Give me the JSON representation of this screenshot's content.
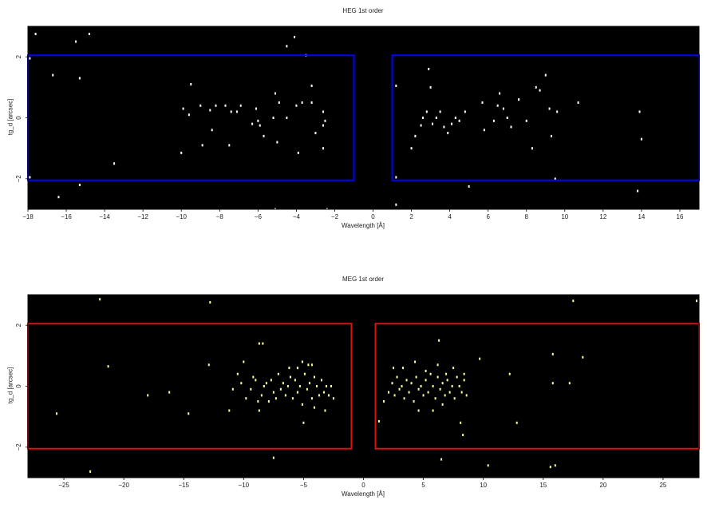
{
  "chart_data": [
    {
      "type": "scatter",
      "title": "HEG 1st order",
      "xlabel": "Wavelength [Å]",
      "ylabel": "tg_d [arcsec]",
      "xlim": [
        -18,
        17
      ],
      "ylim": [
        -3,
        3
      ],
      "xticks": [
        -18,
        -16,
        -14,
        -12,
        -10,
        -8,
        -6,
        -4,
        -2,
        0,
        2,
        4,
        6,
        8,
        10,
        12,
        14,
        16
      ],
      "yticks": [
        -2,
        0,
        2
      ],
      "grid": false,
      "background": "#000000",
      "point_color": "#ffffff",
      "region_color": "#0000ff",
      "regions": [
        {
          "x": [
            -18,
            -1
          ],
          "y": [
            -2.05,
            2.05
          ]
        },
        {
          "x": [
            1,
            17
          ],
          "y": [
            -2.05,
            2.05
          ]
        }
      ],
      "points": [
        [
          -17.6,
          2.75
        ],
        [
          -15.5,
          2.5
        ],
        [
          -14.8,
          2.75
        ],
        [
          -17.9,
          1.95
        ],
        [
          -16.7,
          1.4
        ],
        [
          -15.3,
          1.3
        ],
        [
          -13.5,
          -1.5
        ],
        [
          -15.3,
          -2.2
        ],
        [
          -16.4,
          -2.6
        ],
        [
          -17.9,
          -1.95
        ],
        [
          -9.5,
          1.1
        ],
        [
          -9.9,
          0.3
        ],
        [
          -9.6,
          0.1
        ],
        [
          -9.0,
          0.4
        ],
        [
          -8.5,
          0.25
        ],
        [
          -8.2,
          0.4
        ],
        [
          -7.7,
          0.4
        ],
        [
          -7.4,
          0.2
        ],
        [
          -7.1,
          0.2
        ],
        [
          -6.9,
          0.4
        ],
        [
          -6.1,
          0.3
        ],
        [
          -6.0,
          -0.1
        ],
        [
          -5.9,
          -0.25
        ],
        [
          -5.7,
          -0.6
        ],
        [
          -5.2,
          0.0
        ],
        [
          -5.1,
          0.8
        ],
        [
          -4.9,
          0.5
        ],
        [
          -4.5,
          0.0
        ],
        [
          -4.0,
          0.4
        ],
        [
          -3.7,
          0.5
        ],
        [
          -3.2,
          0.5
        ],
        [
          -3.0,
          -0.5
        ],
        [
          -2.6,
          -0.25
        ],
        [
          -2.5,
          -0.1
        ],
        [
          -2.6,
          -1.0
        ],
        [
          -3.9,
          -1.15
        ],
        [
          -5.0,
          -0.8
        ],
        [
          -6.3,
          -0.2
        ],
        [
          -7.5,
          -0.9
        ],
        [
          -8.4,
          -0.4
        ],
        [
          -8.9,
          -0.9
        ],
        [
          -10.0,
          -1.15
        ],
        [
          -4.1,
          2.65
        ],
        [
          -4.5,
          2.35
        ],
        [
          -3.5,
          2.05
        ],
        [
          -3.2,
          1.05
        ],
        [
          -2.6,
          0.2
        ],
        [
          -5.1,
          -3.0
        ],
        [
          -2.4,
          -3.0
        ],
        [
          1.2,
          1.05
        ],
        [
          2.0,
          -1.0
        ],
        [
          2.2,
          -0.6
        ],
        [
          2.5,
          -0.25
        ],
        [
          2.6,
          0.0
        ],
        [
          2.8,
          0.2
        ],
        [
          2.9,
          1.6
        ],
        [
          3.0,
          1.0
        ],
        [
          3.1,
          -0.2
        ],
        [
          3.3,
          0.0
        ],
        [
          3.5,
          0.2
        ],
        [
          3.7,
          -0.3
        ],
        [
          3.9,
          -0.5
        ],
        [
          4.1,
          -0.2
        ],
        [
          4.3,
          0.0
        ],
        [
          4.5,
          -0.1
        ],
        [
          4.8,
          0.2
        ],
        [
          5.7,
          0.5
        ],
        [
          5.8,
          -0.4
        ],
        [
          6.3,
          -0.1
        ],
        [
          6.5,
          0.4
        ],
        [
          6.6,
          0.8
        ],
        [
          6.8,
          0.3
        ],
        [
          7.0,
          0.0
        ],
        [
          7.2,
          -0.3
        ],
        [
          7.6,
          0.6
        ],
        [
          8.0,
          -0.1
        ],
        [
          8.5,
          1.0
        ],
        [
          8.7,
          0.9
        ],
        [
          9.0,
          1.4
        ],
        [
          9.2,
          0.3
        ],
        [
          9.6,
          0.2
        ],
        [
          10.7,
          0.5
        ],
        [
          8.3,
          -1.0
        ],
        [
          9.3,
          -0.6
        ],
        [
          13.9,
          0.2
        ],
        [
          14.0,
          -0.7
        ],
        [
          13.8,
          -2.4
        ],
        [
          9.5,
          -2.0
        ],
        [
          5.0,
          -2.25
        ],
        [
          1.2,
          -2.85
        ],
        [
          1.2,
          -1.95
        ]
      ]
    },
    {
      "type": "scatter",
      "title": "MEG 1st order",
      "xlabel": "Wavelength [Å]",
      "ylabel": "tg_d [arcsec]",
      "xlim": [
        -28,
        28
      ],
      "ylim": [
        -3,
        3
      ],
      "xticks": [
        -25,
        -20,
        -15,
        -10,
        -5,
        0,
        5,
        10,
        15,
        20,
        25
      ],
      "yticks": [
        -2,
        0,
        2
      ],
      "grid": false,
      "background": "#000000",
      "point_color": "#ffff99",
      "region_color": "#dd1111",
      "regions": [
        {
          "x": [
            -28,
            -1
          ],
          "y": [
            -2.05,
            2.05
          ]
        },
        {
          "x": [
            1,
            28
          ],
          "y": [
            -2.05,
            2.05
          ]
        }
      ],
      "points": [
        [
          -22.0,
          2.85
        ],
        [
          -12.8,
          2.75
        ],
        [
          -8.7,
          1.4
        ],
        [
          -8.4,
          1.4
        ],
        [
          -12.9,
          0.7
        ],
        [
          -21.3,
          0.65
        ],
        [
          -18.0,
          -0.3
        ],
        [
          -16.2,
          -0.2
        ],
        [
          -14.6,
          -0.9
        ],
        [
          -25.6,
          -0.9
        ],
        [
          -22.8,
          -2.8
        ],
        [
          -7.5,
          -2.35
        ],
        [
          -10.9,
          -0.1
        ],
        [
          -10.5,
          0.4
        ],
        [
          -10.2,
          0.1
        ],
        [
          -9.8,
          -0.4
        ],
        [
          -9.4,
          -0.1
        ],
        [
          -9.2,
          0.3
        ],
        [
          -9.0,
          0.2
        ],
        [
          -8.8,
          -0.5
        ],
        [
          -8.5,
          -0.3
        ],
        [
          -8.3,
          0.0
        ],
        [
          -8.1,
          0.1
        ],
        [
          -7.9,
          -0.5
        ],
        [
          -7.7,
          0.2
        ],
        [
          -7.5,
          -0.2
        ],
        [
          -7.3,
          -0.4
        ],
        [
          -7.1,
          0.4
        ],
        [
          -6.9,
          -0.1
        ],
        [
          -6.7,
          0.1
        ],
        [
          -6.5,
          -0.3
        ],
        [
          -6.3,
          0.0
        ],
        [
          -6.1,
          0.3
        ],
        [
          -5.9,
          -0.4
        ],
        [
          -5.7,
          0.2
        ],
        [
          -5.5,
          -0.2
        ],
        [
          -5.3,
          0.0
        ],
        [
          -5.1,
          -0.6
        ],
        [
          -4.9,
          0.4
        ],
        [
          -4.7,
          -0.1
        ],
        [
          -4.5,
          0.1
        ],
        [
          -4.3,
          -0.4
        ],
        [
          -4.1,
          0.3
        ],
        [
          -3.9,
          0.0
        ],
        [
          -3.7,
          -0.3
        ],
        [
          -3.5,
          0.2
        ],
        [
          -3.3,
          -0.2
        ],
        [
          -3.1,
          0.0
        ],
        [
          -2.9,
          -0.3
        ],
        [
          -2.7,
          0.0
        ],
        [
          -11.2,
          -0.8
        ],
        [
          -8.7,
          -0.8
        ],
        [
          -6.2,
          0.6
        ],
        [
          -5.5,
          0.6
        ],
        [
          -5.1,
          0.8
        ],
        [
          -4.6,
          0.7
        ],
        [
          -4.1,
          -0.7
        ],
        [
          -3.2,
          -0.8
        ],
        [
          -2.5,
          -0.4
        ],
        [
          -5.0,
          -1.2
        ],
        [
          -10.0,
          0.8
        ],
        [
          -4.3,
          0.7
        ],
        [
          1.3,
          -1.15
        ],
        [
          1.7,
          -0.5
        ],
        [
          2.1,
          -0.2
        ],
        [
          2.4,
          0.1
        ],
        [
          2.6,
          -0.3
        ],
        [
          2.8,
          0.3
        ],
        [
          3.0,
          -0.1
        ],
        [
          3.2,
          0.0
        ],
        [
          3.4,
          -0.4
        ],
        [
          3.6,
          0.2
        ],
        [
          3.8,
          -0.2
        ],
        [
          4.0,
          0.1
        ],
        [
          4.2,
          -0.5
        ],
        [
          4.4,
          0.3
        ],
        [
          4.6,
          -0.1
        ],
        [
          4.8,
          0.0
        ],
        [
          5.0,
          -0.3
        ],
        [
          5.2,
          0.2
        ],
        [
          5.4,
          -0.2
        ],
        [
          5.6,
          0.4
        ],
        [
          5.8,
          0.0
        ],
        [
          6.0,
          -0.4
        ],
        [
          6.2,
          0.3
        ],
        [
          6.4,
          -0.1
        ],
        [
          6.6,
          0.1
        ],
        [
          6.8,
          -0.3
        ],
        [
          7.0,
          0.2
        ],
        [
          7.2,
          -0.2
        ],
        [
          7.4,
          0.0
        ],
        [
          7.6,
          -0.4
        ],
        [
          7.8,
          0.3
        ],
        [
          8.0,
          0.0
        ],
        [
          8.2,
          -0.2
        ],
        [
          8.4,
          0.2
        ],
        [
          8.6,
          -0.3
        ],
        [
          2.5,
          0.6
        ],
        [
          3.3,
          0.6
        ],
        [
          4.3,
          0.8
        ],
        [
          5.2,
          0.5
        ],
        [
          6.2,
          0.7
        ],
        [
          6.9,
          0.4
        ],
        [
          7.5,
          0.6
        ],
        [
          8.4,
          0.4
        ],
        [
          4.6,
          -0.8
        ],
        [
          5.8,
          -0.8
        ],
        [
          6.6,
          -0.6
        ],
        [
          8.1,
          -1.2
        ],
        [
          8.3,
          -1.6
        ],
        [
          6.3,
          1.5
        ],
        [
          9.7,
          0.9
        ],
        [
          12.2,
          0.4
        ],
        [
          12.8,
          -1.2
        ],
        [
          15.8,
          1.05
        ],
        [
          15.8,
          0.1
        ],
        [
          17.2,
          0.1
        ],
        [
          18.3,
          0.95
        ],
        [
          17.5,
          2.8
        ],
        [
          27.8,
          2.8
        ],
        [
          10.4,
          -2.6
        ],
        [
          15.6,
          -2.65
        ],
        [
          16.0,
          -2.6
        ],
        [
          6.5,
          -2.4
        ]
      ]
    }
  ]
}
